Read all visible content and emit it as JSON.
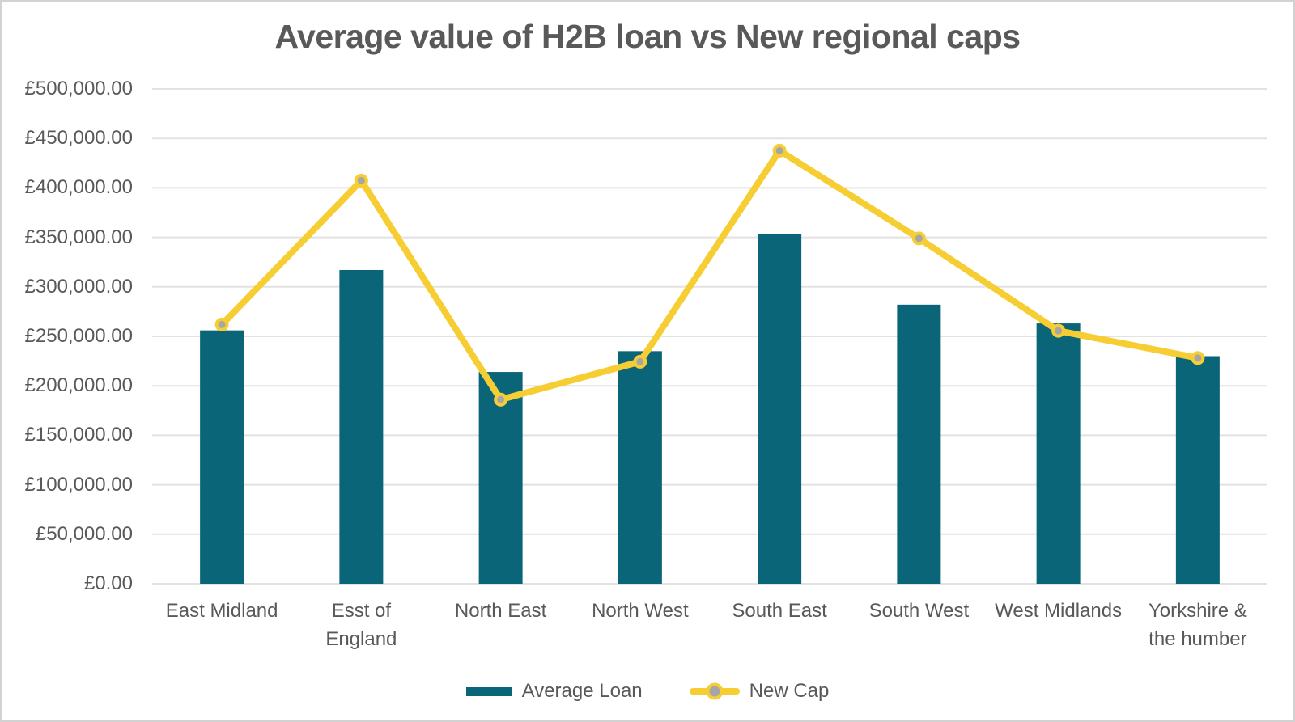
{
  "colors": {
    "bar_teal": "#0b6578",
    "line_yellow": "#f6ce33",
    "marker_gray": "#a6a6a6",
    "gridline": "#e2e2e2",
    "text_gray": "#595959",
    "frame_border": "#d2d2d2",
    "background": "#ffffff"
  },
  "chart_data": {
    "type": "combo",
    "title": "Average value of H2B loan vs New regional caps",
    "categories": [
      "East Midland",
      "Esst of\nEngland",
      "North East",
      "North West",
      "South East",
      "South West",
      "West Midlands",
      "Yorkshire &\nthe humber"
    ],
    "series": [
      {
        "name": "Average Loan",
        "kind": "bar",
        "color": "#0b6578",
        "values": [
          256000,
          317000,
          214000,
          235000,
          353000,
          282000,
          263000,
          230000
        ]
      },
      {
        "name": "New Cap",
        "kind": "line",
        "color": "#f6ce33",
        "marker_color": "#a6a6a6",
        "values": [
          261900,
          407400,
          186100,
          224400,
          437600,
          349000,
          255600,
          228100
        ]
      }
    ],
    "y_axis": {
      "min": 0,
      "max": 500000,
      "step": 50000,
      "tick_labels": [
        "£500,000.00",
        "£450,000.00",
        "£400,000.00",
        "£350,000.00",
        "£300,000.00",
        "£250,000.00",
        "£200,000.00",
        "£150,000.00",
        "£100,000.00",
        "£50,000.00",
        "£0.00"
      ]
    },
    "grid": true,
    "legend_position": "bottom"
  }
}
